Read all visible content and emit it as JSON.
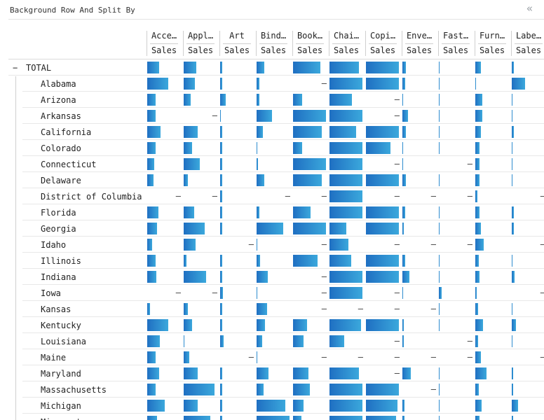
{
  "header": {
    "title": "Background Row And Split By",
    "collapse_icon": "double-chevron-left-icon"
  },
  "columns": [
    {
      "name": "Acce…",
      "measure": "Sales"
    },
    {
      "name": "Appl…",
      "measure": "Sales"
    },
    {
      "name": "Art",
      "measure": "Sales"
    },
    {
      "name": "Bind…",
      "measure": "Sales"
    },
    {
      "name": "Book…",
      "measure": "Sales"
    },
    {
      "name": "Chai…",
      "measure": "Sales"
    },
    {
      "name": "Copi…",
      "measure": "Sales"
    },
    {
      "name": "Enve…",
      "measure": "Sales"
    },
    {
      "name": "Fast…",
      "measure": "Sales"
    },
    {
      "name": "Furn…",
      "measure": "Sales"
    },
    {
      "name": "Labe…",
      "measure": "Sales"
    }
  ],
  "total": {
    "toggle": "−",
    "label": "TOTAL",
    "values": [
      0.36,
      0.38,
      0.06,
      0.22,
      0.82,
      0.88,
      0.98,
      0.1,
      0.02,
      0.16,
      0.06
    ]
  },
  "rows": [
    {
      "label": "Alabama",
      "values": [
        0.62,
        0.34,
        0.06,
        0.08,
        null,
        0.98,
        0.98,
        0.08,
        0.02,
        0.02,
        0.4
      ]
    },
    {
      "label": "Arizona",
      "values": [
        0.24,
        0.2,
        0.16,
        0.08,
        0.28,
        0.66,
        null,
        0.02,
        0.02,
        0.2,
        0.02
      ]
    },
    {
      "label": "Arkansas",
      "values": [
        0.26,
        null,
        0.02,
        0.46,
        0.98,
        0.98,
        null,
        0.16,
        0.02,
        0.2,
        0.02
      ]
    },
    {
      "label": "California",
      "values": [
        0.4,
        0.42,
        0.06,
        0.18,
        0.86,
        0.8,
        0.98,
        0.1,
        0.02,
        0.16,
        0.06
      ]
    },
    {
      "label": "Colorado",
      "values": [
        0.24,
        0.26,
        0.06,
        0.02,
        0.28,
        0.98,
        0.72,
        0.02,
        0.02,
        0.12,
        0.02
      ]
    },
    {
      "label": "Connecticut",
      "values": [
        0.2,
        0.48,
        0.06,
        0.04,
        0.98,
        0.98,
        null,
        0.02,
        null,
        0.12,
        0.02
      ]
    },
    {
      "label": "Delaware",
      "values": [
        0.18,
        0.12,
        0.06,
        0.22,
        0.86,
        0.98,
        0.98,
        0.1,
        0.02,
        0.12,
        0.02
      ]
    },
    {
      "label": "District of Columbia",
      "values": [
        null,
        null,
        0.06,
        null,
        null,
        0.98,
        null,
        null,
        null,
        0.06,
        null
      ]
    },
    {
      "label": "Florida",
      "values": [
        0.34,
        0.32,
        0.06,
        0.08,
        0.52,
        0.98,
        0.98,
        0.08,
        0.02,
        0.12,
        0.06
      ]
    },
    {
      "label": "Georgia",
      "values": [
        0.3,
        0.62,
        0.06,
        0.8,
        0.98,
        0.5,
        0.98,
        0.04,
        0.02,
        0.16,
        0.06
      ]
    },
    {
      "label": "Idaho",
      "values": [
        0.14,
        0.36,
        null,
        0.02,
        null,
        0.56,
        null,
        null,
        null,
        0.26,
        null
      ]
    },
    {
      "label": "Illinois",
      "values": [
        0.26,
        0.08,
        0.06,
        0.1,
        0.72,
        0.64,
        0.98,
        0.08,
        0.02,
        0.1,
        0.02
      ]
    },
    {
      "label": "Indiana",
      "values": [
        0.28,
        0.66,
        0.06,
        0.34,
        null,
        0.98,
        0.98,
        0.2,
        0.02,
        0.12,
        0.08
      ]
    },
    {
      "label": "Iowa",
      "values": [
        null,
        null,
        0.08,
        0.02,
        null,
        0.98,
        null,
        0.02,
        0.08,
        0.04,
        null
      ]
    },
    {
      "label": "Kansas",
      "values": [
        0.08,
        0.12,
        0.06,
        0.32,
        null,
        null,
        null,
        null,
        0.02,
        0.08,
        0.02
      ]
    },
    {
      "label": "Kentucky",
      "values": [
        0.62,
        0.26,
        0.06,
        0.26,
        0.42,
        0.94,
        0.98,
        0.04,
        0.02,
        0.22,
        0.12
      ]
    },
    {
      "label": "Louisiana",
      "values": [
        0.38,
        0.02,
        0.1,
        0.16,
        0.32,
        0.44,
        null,
        0.04,
        null,
        0.08,
        0.02
      ]
    },
    {
      "label": "Maine",
      "values": [
        0.26,
        0.16,
        null,
        0.02,
        null,
        null,
        null,
        null,
        null,
        0.16,
        null
      ]
    },
    {
      "label": "Maryland",
      "values": [
        0.36,
        0.42,
        0.06,
        0.36,
        0.46,
        0.88,
        null,
        0.26,
        0.02,
        0.34,
        0.04
      ]
    },
    {
      "label": "Massachusetts",
      "values": [
        0.24,
        0.92,
        0.06,
        0.2,
        0.5,
        0.98,
        0.98,
        null,
        0.02,
        0.1,
        0.04
      ]
    },
    {
      "label": "Michigan",
      "values": [
        0.52,
        0.42,
        0.06,
        0.86,
        0.32,
        0.98,
        0.94,
        0.06,
        0.02,
        0.18,
        0.18
      ]
    },
    {
      "label": "Minnesota",
      "values": [
        0.3,
        0.8,
        0.06,
        0.98,
        0.24,
        0.98,
        0.9,
        0.06,
        0.02,
        0.12,
        0.04
      ]
    }
  ],
  "dash": "–"
}
